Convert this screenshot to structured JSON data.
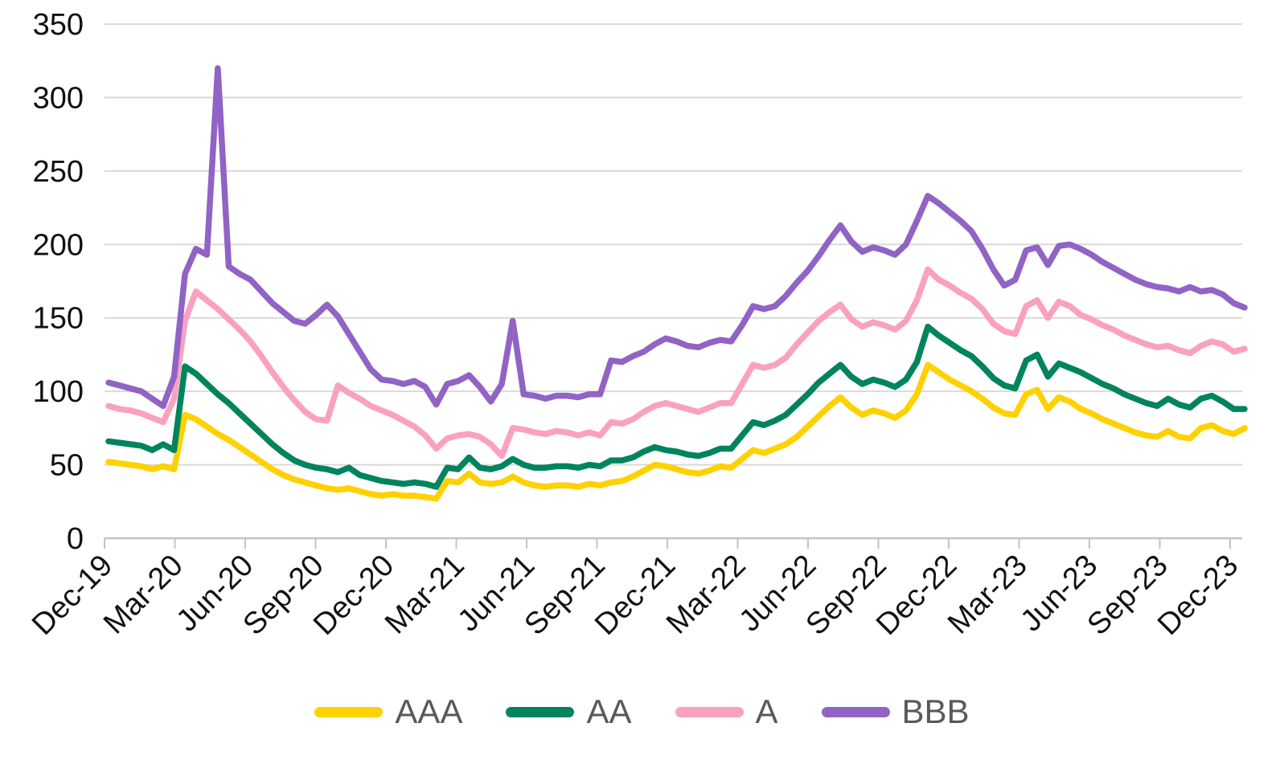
{
  "chart_data": {
    "type": "line",
    "title": "",
    "xlabel": "",
    "ylabel": "",
    "x_frequency": "biweekly samples from Dec-2019 through Dec-2023",
    "x_tick_labels": [
      "Dec-19",
      "Mar-20",
      "Jun-20",
      "Sep-20",
      "Dec-20",
      "Mar-21",
      "Jun-21",
      "Sep-21",
      "Dec-21",
      "Mar-22",
      "Jun-22",
      "Sep-22",
      "Dec-22",
      "Mar-23",
      "Jun-23",
      "Sep-23",
      "Dec-23"
    ],
    "y_tick_values": [
      0,
      50,
      100,
      150,
      200,
      250,
      300,
      350
    ],
    "ylim": [
      0,
      350
    ],
    "grid": "horizontal",
    "legend_position": "bottom",
    "colors": {
      "axis_text": "#111111",
      "legend_text": "#595959",
      "gridline": "#D9D9D9",
      "axis_line": "#C3C3C3"
    },
    "series": [
      {
        "name": "AAA",
        "color": "#FFD100",
        "values": [
          52,
          51,
          50,
          49,
          47,
          49,
          47,
          84,
          81,
          76,
          71,
          67,
          62,
          57,
          52,
          47,
          43,
          40,
          38,
          36,
          34,
          33,
          34,
          32,
          30,
          29,
          30,
          29,
          29,
          28,
          27,
          39,
          38,
          44,
          38,
          37,
          38,
          42,
          38,
          36,
          35,
          36,
          36,
          35,
          37,
          36,
          38,
          39,
          42,
          46,
          50,
          49,
          47,
          45,
          44,
          46,
          49,
          48,
          54,
          60,
          58,
          61,
          64,
          69,
          76,
          83,
          90,
          96,
          89,
          84,
          87,
          85,
          82,
          87,
          98,
          118,
          113,
          108,
          104,
          100,
          95,
          89,
          85,
          84,
          98,
          101,
          88,
          96,
          93,
          88,
          85,
          81,
          78,
          75,
          72,
          70,
          69,
          73,
          69,
          68,
          75,
          77,
          73,
          71,
          75
        ]
      },
      {
        "name": "AA",
        "color": "#00845D",
        "values": [
          66,
          65,
          64,
          63,
          60,
          64,
          60,
          117,
          112,
          105,
          98,
          92,
          85,
          78,
          71,
          64,
          58,
          53,
          50,
          48,
          47,
          45,
          48,
          43,
          41,
          39,
          38,
          37,
          38,
          37,
          35,
          48,
          47,
          55,
          48,
          47,
          49,
          54,
          50,
          48,
          48,
          49,
          49,
          48,
          50,
          49,
          53,
          53,
          55,
          59,
          62,
          60,
          59,
          57,
          56,
          58,
          61,
          61,
          70,
          79,
          77,
          80,
          84,
          91,
          98,
          106,
          112,
          118,
          110,
          105,
          108,
          106,
          103,
          108,
          120,
          144,
          138,
          133,
          128,
          124,
          117,
          109,
          104,
          102,
          121,
          125,
          110,
          119,
          116,
          113,
          109,
          105,
          102,
          98,
          95,
          92,
          90,
          95,
          91,
          89,
          95,
          97,
          93,
          88,
          88
        ]
      },
      {
        "name": "A",
        "color": "#FAA1BF",
        "values": [
          90,
          88,
          87,
          85,
          82,
          79,
          95,
          148,
          168,
          162,
          156,
          149,
          142,
          134,
          124,
          113,
          103,
          94,
          86,
          81,
          80,
          104,
          99,
          95,
          90,
          87,
          84,
          80,
          76,
          70,
          61,
          68,
          70,
          71,
          69,
          64,
          56,
          75,
          74,
          72,
          71,
          73,
          72,
          70,
          72,
          70,
          79,
          78,
          81,
          86,
          90,
          92,
          90,
          88,
          86,
          89,
          92,
          92,
          105,
          118,
          116,
          118,
          123,
          132,
          140,
          148,
          154,
          159,
          149,
          144,
          147,
          145,
          142,
          148,
          162,
          183,
          176,
          172,
          167,
          163,
          156,
          146,
          141,
          139,
          158,
          162,
          150,
          161,
          158,
          152,
          149,
          145,
          142,
          138,
          135,
          132,
          130,
          131,
          128,
          126,
          131,
          134,
          132,
          127,
          129
        ]
      },
      {
        "name": "BBB",
        "color": "#9163C5",
        "values": [
          106,
          104,
          102,
          100,
          95,
          90,
          110,
          180,
          197,
          193,
          320,
          185,
          180,
          176,
          168,
          160,
          154,
          148,
          146,
          152,
          159,
          151,
          139,
          127,
          115,
          108,
          107,
          105,
          107,
          103,
          91,
          105,
          107,
          111,
          103,
          93,
          105,
          148,
          98,
          97,
          95,
          97,
          97,
          96,
          98,
          98,
          121,
          120,
          124,
          127,
          132,
          136,
          134,
          131,
          130,
          133,
          135,
          134,
          145,
          158,
          156,
          158,
          165,
          174,
          182,
          192,
          203,
          213,
          202,
          195,
          198,
          196,
          193,
          200,
          216,
          233,
          228,
          222,
          216,
          209,
          197,
          183,
          172,
          176,
          196,
          198,
          186,
          199,
          200,
          197,
          193,
          188,
          184,
          180,
          176,
          173,
          171,
          170,
          168,
          171,
          168,
          169,
          166,
          160,
          157
        ]
      }
    ]
  },
  "legend": {
    "items": [
      "AAA",
      "AA",
      "A",
      "BBB"
    ]
  }
}
